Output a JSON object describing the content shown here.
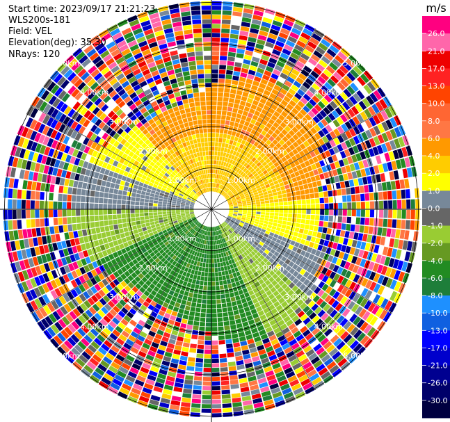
{
  "header": {
    "start_time": "Start time: 2023/09/17 21:21:23",
    "instrument": "WLS200s-181",
    "field": "Field: VEL",
    "elevation": "Elevation(deg): 35.30",
    "nrays": "NRays: 120"
  },
  "chart_data": {
    "type": "heatmap",
    "projection": "polar-ppi",
    "field": "VEL",
    "units": "m/s",
    "n_rays": 120,
    "elevation_deg": 35.3,
    "range_rings_km": [
      1.0,
      2.0,
      3.0,
      4.0,
      5.0,
      6.0
    ],
    "ring_label": "km",
    "ring_labels": [
      "1.00km",
      "2.00km",
      "3.00km",
      "4.00km",
      "5.00km",
      "6.00km"
    ],
    "colorbar": {
      "title": "m/s",
      "ticks": [
        "26.0",
        "21.0",
        "17.0",
        "13.0",
        "10.0",
        "8.0",
        "6.0",
        "4.0",
        "2.0",
        "1.0",
        "0.0",
        "-1.0",
        "-2.0",
        "-4.0",
        "-6.0",
        "-8.0",
        "-10.0",
        "-13.0",
        "-17.0",
        "-21.0",
        "-26.0",
        "-30.0"
      ],
      "colors": [
        "#ff0080",
        "#ff66aa",
        "#ee0000",
        "#ff2222",
        "#ff4400",
        "#ff6633",
        "#ff7744",
        "#ff9900",
        "#ffcc00",
        "#ffff00",
        "#778899",
        "#666666",
        "#99cc33",
        "#669922",
        "#228b22",
        "#1e7e3a",
        "#1e90ff",
        "#1060e0",
        "#0000ff",
        "#0000cc",
        "#000090",
        "#00006a",
        "#000040"
      ]
    }
  }
}
